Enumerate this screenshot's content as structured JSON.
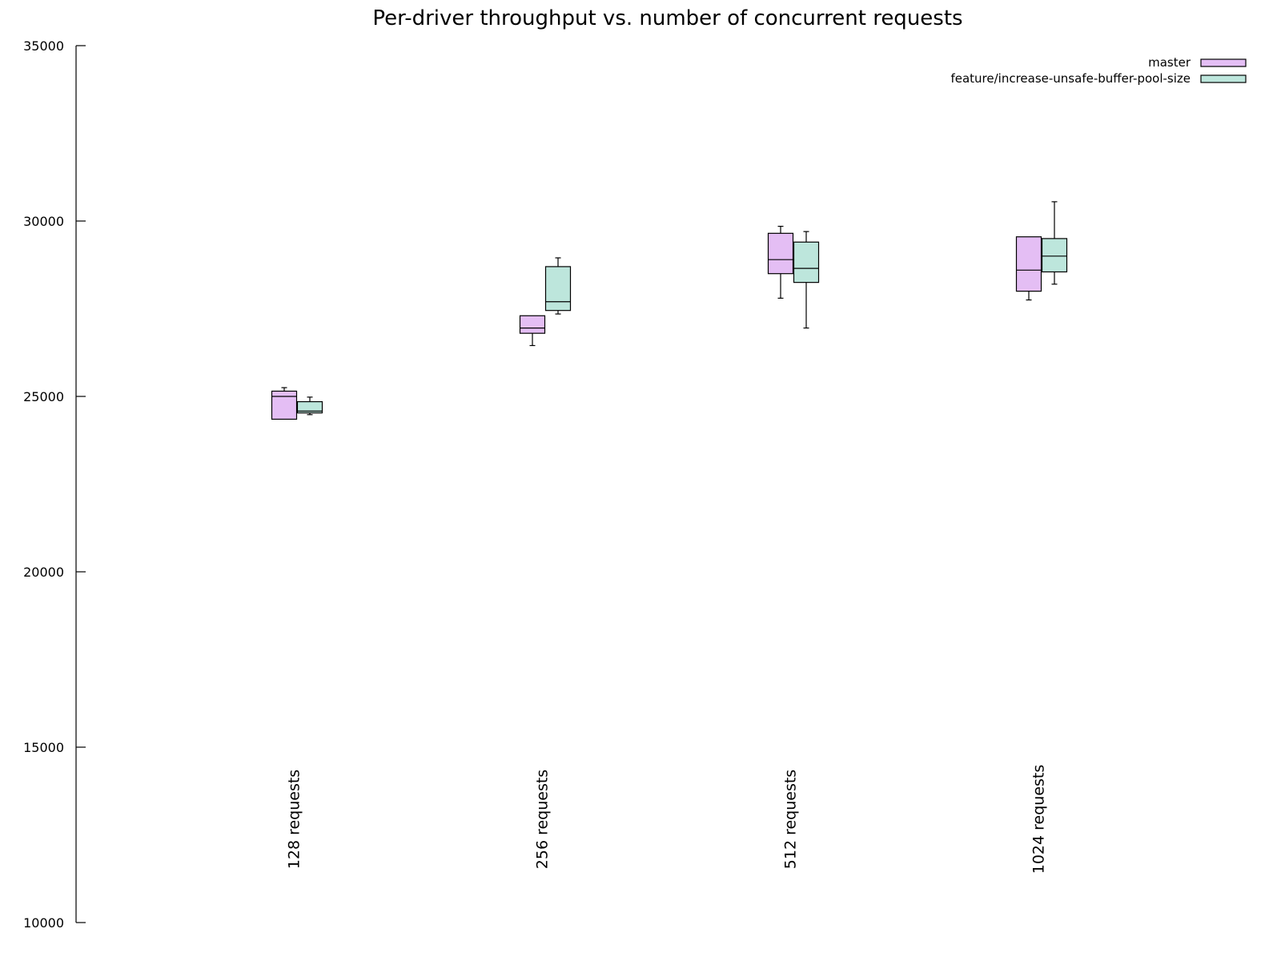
{
  "chart_data": {
    "type": "boxplot",
    "title": "Per-driver throughput vs. number of concurrent requests",
    "xlabel": "",
    "ylabel": "",
    "ylim": [
      10000,
      35000
    ],
    "yticks": [
      10000,
      15000,
      20000,
      25000,
      30000,
      35000
    ],
    "grid": false,
    "legend_position": "top-right",
    "categories": [
      "128 requests",
      "256 requests",
      "512 requests",
      "1024 requests"
    ],
    "series": [
      {
        "name": "master",
        "color": "#e4bef4",
        "boxes": [
          {
            "min": 24350,
            "q1": 24350,
            "median": 25000,
            "q3": 25150,
            "max": 25250
          },
          {
            "min": 26450,
            "q1": 26800,
            "median": 26950,
            "q3": 27300,
            "max": 27300
          },
          {
            "min": 27800,
            "q1": 28500,
            "median": 28900,
            "q3": 29650,
            "max": 29850
          },
          {
            "min": 27750,
            "q1": 28000,
            "median": 28600,
            "q3": 29550,
            "max": 29550
          }
        ]
      },
      {
        "name": "feature/increase-unsafe-buffer-pool-size",
        "color": "#bde6dc",
        "boxes": [
          {
            "min": 24480,
            "q1": 24530,
            "median": 24580,
            "q3": 24850,
            "max": 24980
          },
          {
            "min": 27350,
            "q1": 27450,
            "median": 27700,
            "q3": 28700,
            "max": 28950
          },
          {
            "min": 26950,
            "q1": 28250,
            "median": 28650,
            "q3": 29400,
            "max": 29700
          },
          {
            "min": 28200,
            "q1": 28550,
            "median": 29000,
            "q3": 29500,
            "max": 30550
          }
        ]
      }
    ]
  }
}
